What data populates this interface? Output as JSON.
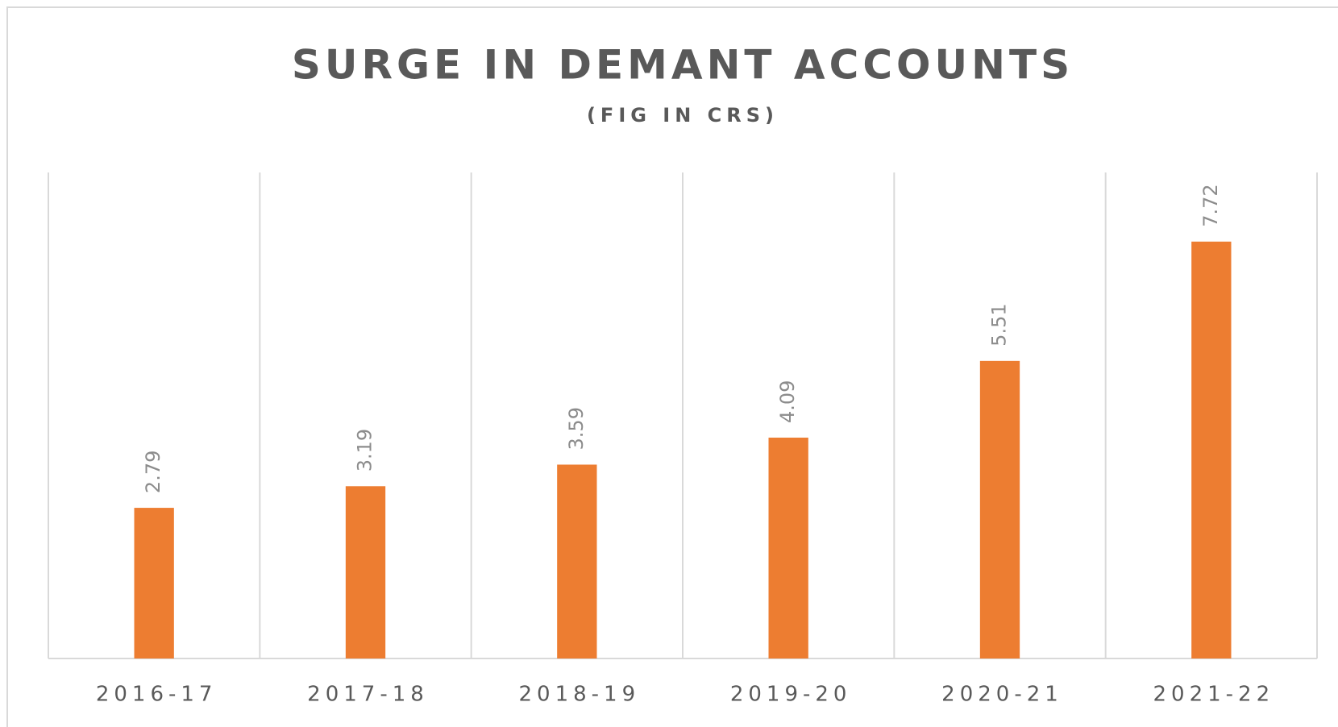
{
  "chart_data": {
    "type": "bar",
    "title": "SURGE IN DEMANT ACCOUNTS",
    "subtitle": "(FIG IN CRS)",
    "categories": [
      "2016-17",
      "2017-18",
      "2018-19",
      "2019-20",
      "2020-21",
      "2021-22"
    ],
    "values": [
      2.79,
      3.19,
      3.59,
      4.09,
      5.51,
      7.72
    ],
    "color": "#ed7d31",
    "ylim": [
      0,
      9
    ]
  }
}
